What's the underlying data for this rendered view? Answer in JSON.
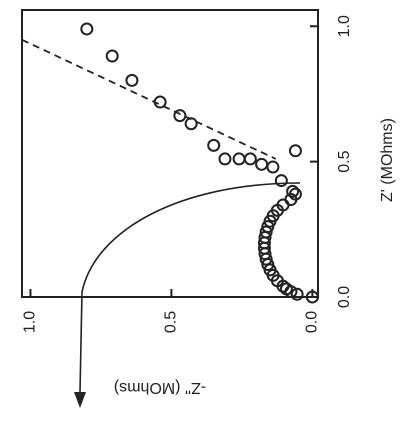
{
  "chart_data": {
    "type": "scatter",
    "x_label": "Z' (MOhms)",
    "y_label": "-Z'' (MOhms)",
    "xlim": [
      0,
      1.06
    ],
    "ylim": [
      -0.02,
      1.03
    ],
    "xticks": [
      {
        "value": 0,
        "label": "0.0"
      },
      {
        "value": 0.5,
        "label": "0.5"
      },
      {
        "value": 1,
        "label": "1.0"
      }
    ],
    "yticks": [
      {
        "value": 0,
        "label": "0.0"
      },
      {
        "value": 0.5,
        "label": "0.5"
      },
      {
        "value": 1,
        "label": "1.0"
      }
    ],
    "series": [
      {
        "color": "#222222",
        "marker": "circle",
        "x": [
          0.0,
          0.01,
          0.02,
          0.03,
          0.04,
          0.06,
          0.08,
          0.1,
          0.12,
          0.14,
          0.16,
          0.18,
          0.2,
          0.22,
          0.24,
          0.26,
          0.28,
          0.3,
          0.32,
          0.34,
          0.36,
          0.38,
          0.39,
          0.43,
          0.48,
          0.49,
          0.51,
          0.51,
          0.51,
          0.54,
          0.56,
          0.64,
          0.67,
          0.72,
          0.8,
          0.89,
          0.99
        ],
        "values": [
          0.0,
          0.054,
          0.076,
          0.092,
          0.104,
          0.124,
          0.139,
          0.15,
          0.158,
          0.164,
          0.168,
          0.17,
          0.17,
          0.168,
          0.164,
          0.158,
          0.15,
          0.139,
          0.124,
          0.104,
          0.076,
          0.06,
          0.07,
          0.11,
          0.14,
          0.18,
          0.22,
          0.26,
          0.31,
          0.06,
          0.35,
          0.43,
          0.47,
          0.54,
          0.64,
          0.71,
          0.8
        ]
      },
      {
        "color": "#222222",
        "marker": "dashed-line",
        "x": [
          0.95,
          0.51
        ],
        "values": [
          1.03,
          0.13
        ]
      }
    ]
  }
}
